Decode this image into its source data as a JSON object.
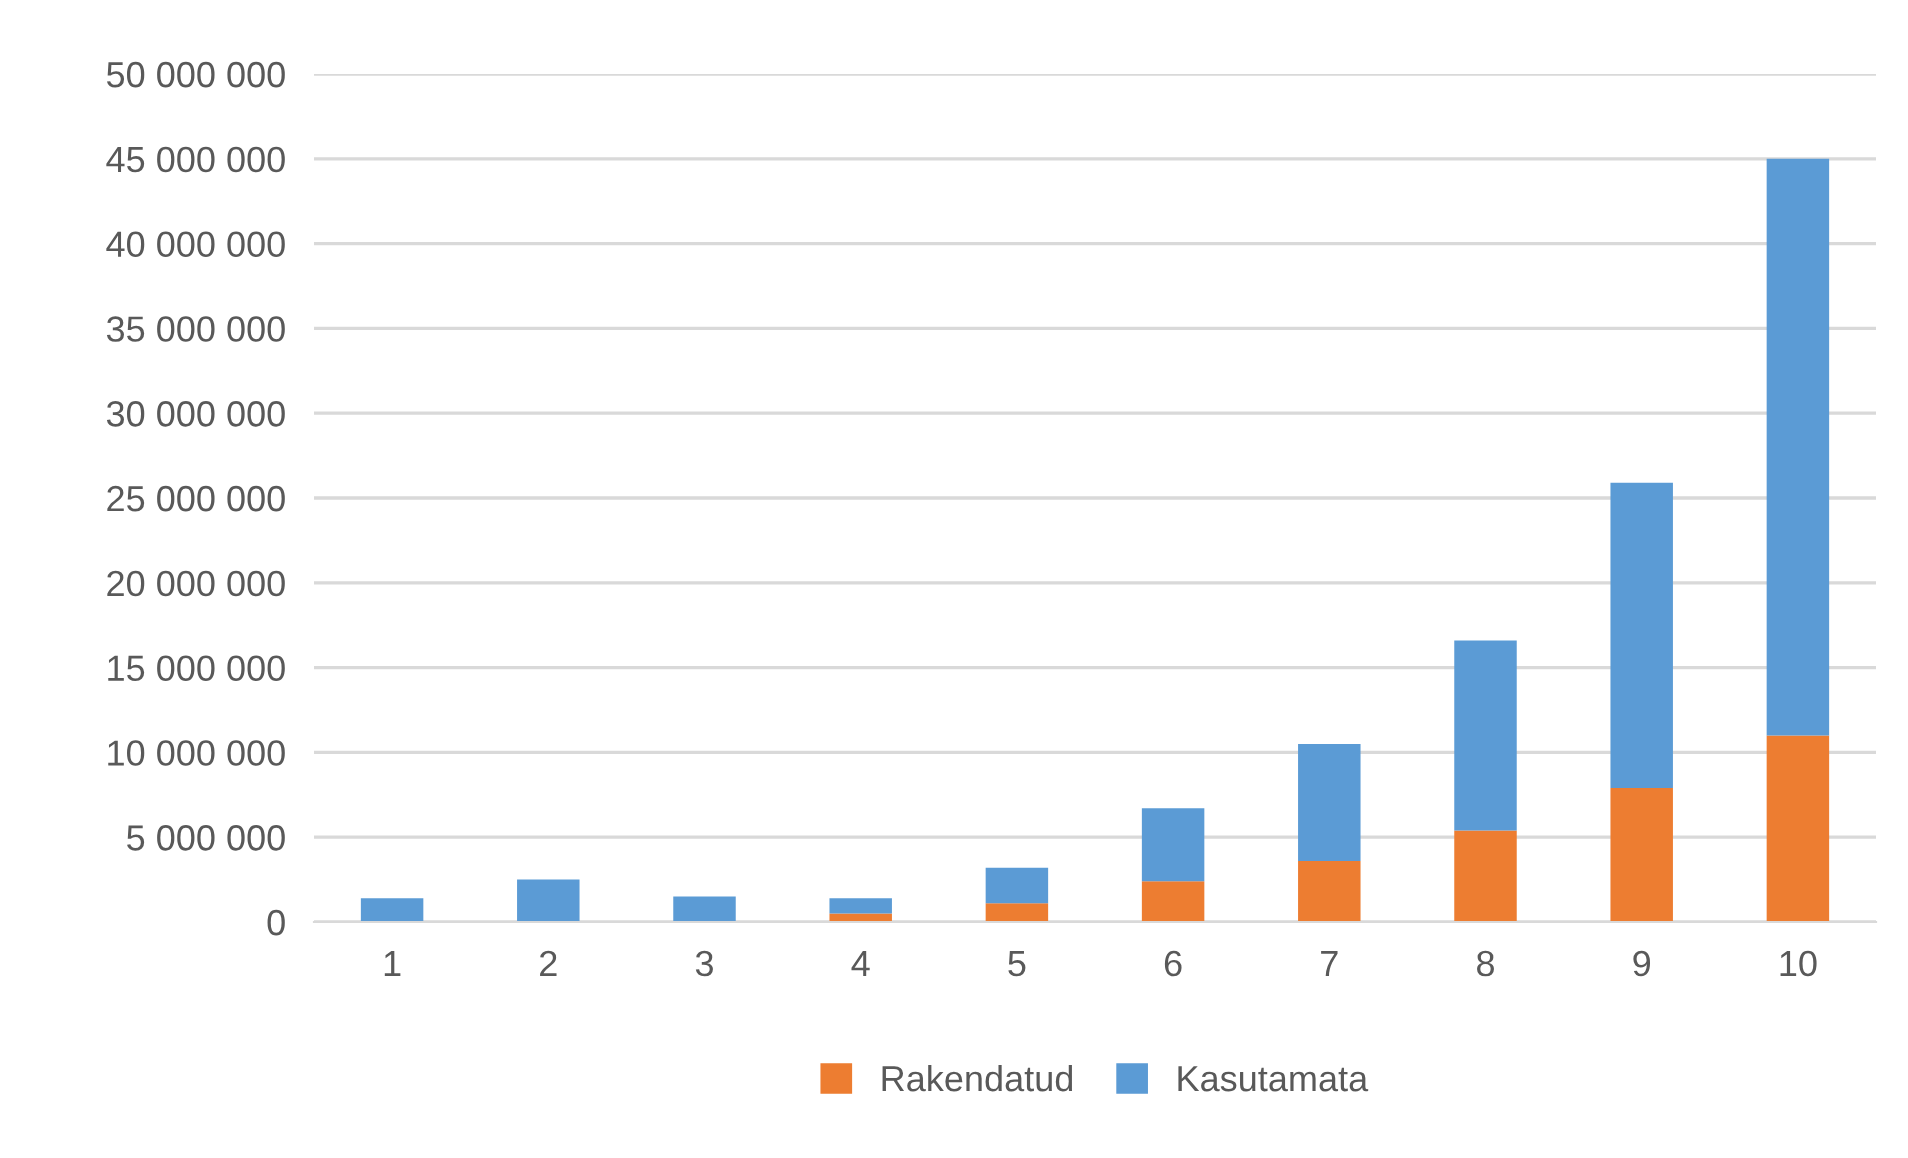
{
  "chart_data": {
    "type": "bar",
    "stacked": true,
    "categories": [
      "1",
      "2",
      "3",
      "4",
      "5",
      "6",
      "7",
      "8",
      "9",
      "10"
    ],
    "series": [
      {
        "name": "Rakendatud",
        "color": "#ed7d31",
        "values": [
          0,
          0,
          0,
          500000,
          1100000,
          2400000,
          3600000,
          5400000,
          7900000,
          11000000
        ]
      },
      {
        "name": "Kasutamata",
        "color": "#5b9bd5",
        "values": [
          1400000,
          2500000,
          1500000,
          900000,
          2100000,
          4300000,
          6900000,
          11200000,
          18000000,
          34000000
        ]
      }
    ],
    "ylim": [
      0,
      50000000
    ],
    "yticks": [
      {
        "value": 0,
        "label": "0"
      },
      {
        "value": 5000000,
        "label": "5 000 000"
      },
      {
        "value": 10000000,
        "label": "10 000 000"
      },
      {
        "value": 15000000,
        "label": "15 000 000"
      },
      {
        "value": 20000000,
        "label": "20 000 000"
      },
      {
        "value": 25000000,
        "label": "25 000 000"
      },
      {
        "value": 30000000,
        "label": "30 000 000"
      },
      {
        "value": 35000000,
        "label": "35 000 000"
      },
      {
        "value": 40000000,
        "label": "40 000 000"
      },
      {
        "value": 45000000,
        "label": "45 000 000"
      },
      {
        "value": 50000000,
        "label": "50 000 000"
      }
    ],
    "grid": "y",
    "legend": "bottom"
  }
}
